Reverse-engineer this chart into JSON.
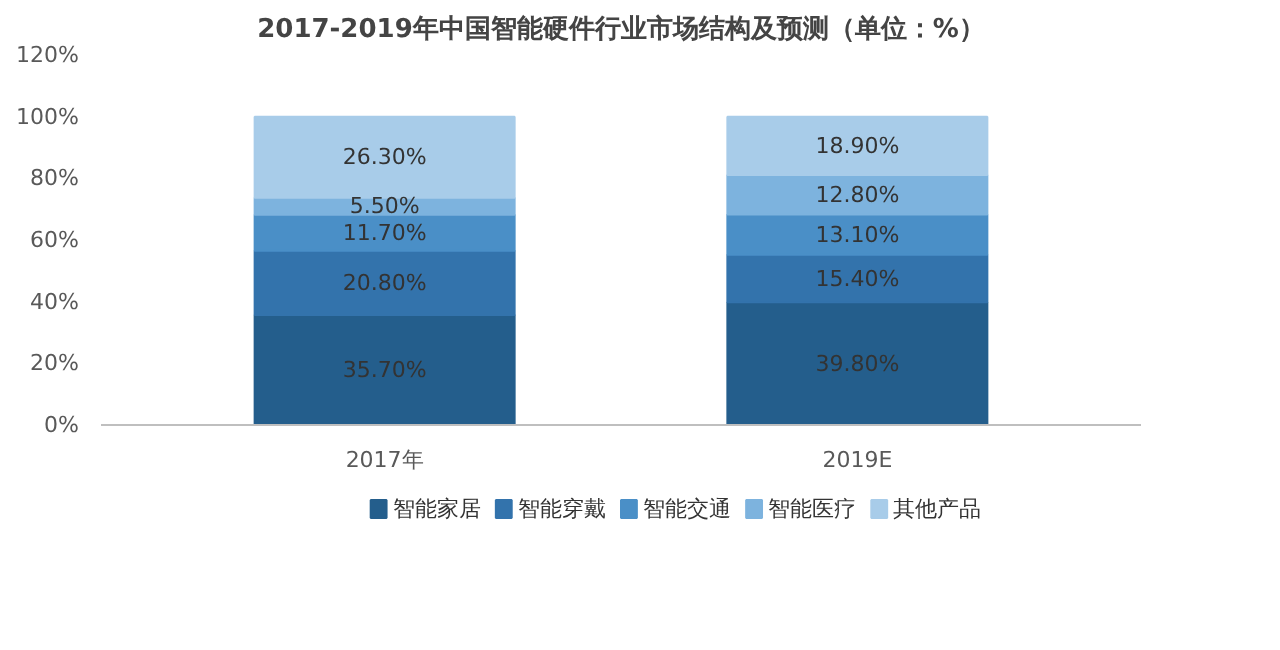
{
  "chart_data": {
    "type": "bar",
    "stacked": true,
    "title": "2017-2019年中国智能硬件行业市场结构及预测（单位：%）",
    "categories": [
      "2017年",
      "2019E"
    ],
    "series": [
      {
        "name": "智能家居",
        "color": "#245e8c",
        "values": [
          35.7,
          39.8
        ],
        "value_labels": [
          "35.70%",
          "39.80%"
        ]
      },
      {
        "name": "智能穿戴",
        "color": "#3373ac",
        "values": [
          20.8,
          15.4
        ],
        "value_labels": [
          "20.80%",
          "15.40%"
        ]
      },
      {
        "name": "智能交通",
        "color": "#4a8fc7",
        "values": [
          11.7,
          13.1
        ],
        "value_labels": [
          "11.70%",
          "13.10%"
        ]
      },
      {
        "name": "智能医疗",
        "color": "#7db3de",
        "values": [
          5.5,
          12.8
        ],
        "value_labels": [
          "5.50%",
          "12.80%"
        ]
      },
      {
        "name": "其他产品",
        "color": "#a8cce9",
        "values": [
          26.3,
          18.9
        ],
        "value_labels": [
          "26.30%",
          "18.90%"
        ]
      }
    ],
    "ylim": [
      0,
      120
    ],
    "yticks": [
      {
        "value": 0,
        "label": "0%"
      },
      {
        "value": 20,
        "label": "20%"
      },
      {
        "value": 40,
        "label": "40%"
      },
      {
        "value": 60,
        "label": "60%"
      },
      {
        "value": 80,
        "label": "80%"
      },
      {
        "value": 100,
        "label": "100%"
      },
      {
        "value": 120,
        "label": "120%"
      }
    ],
    "grid": false,
    "legend": "bottom"
  }
}
